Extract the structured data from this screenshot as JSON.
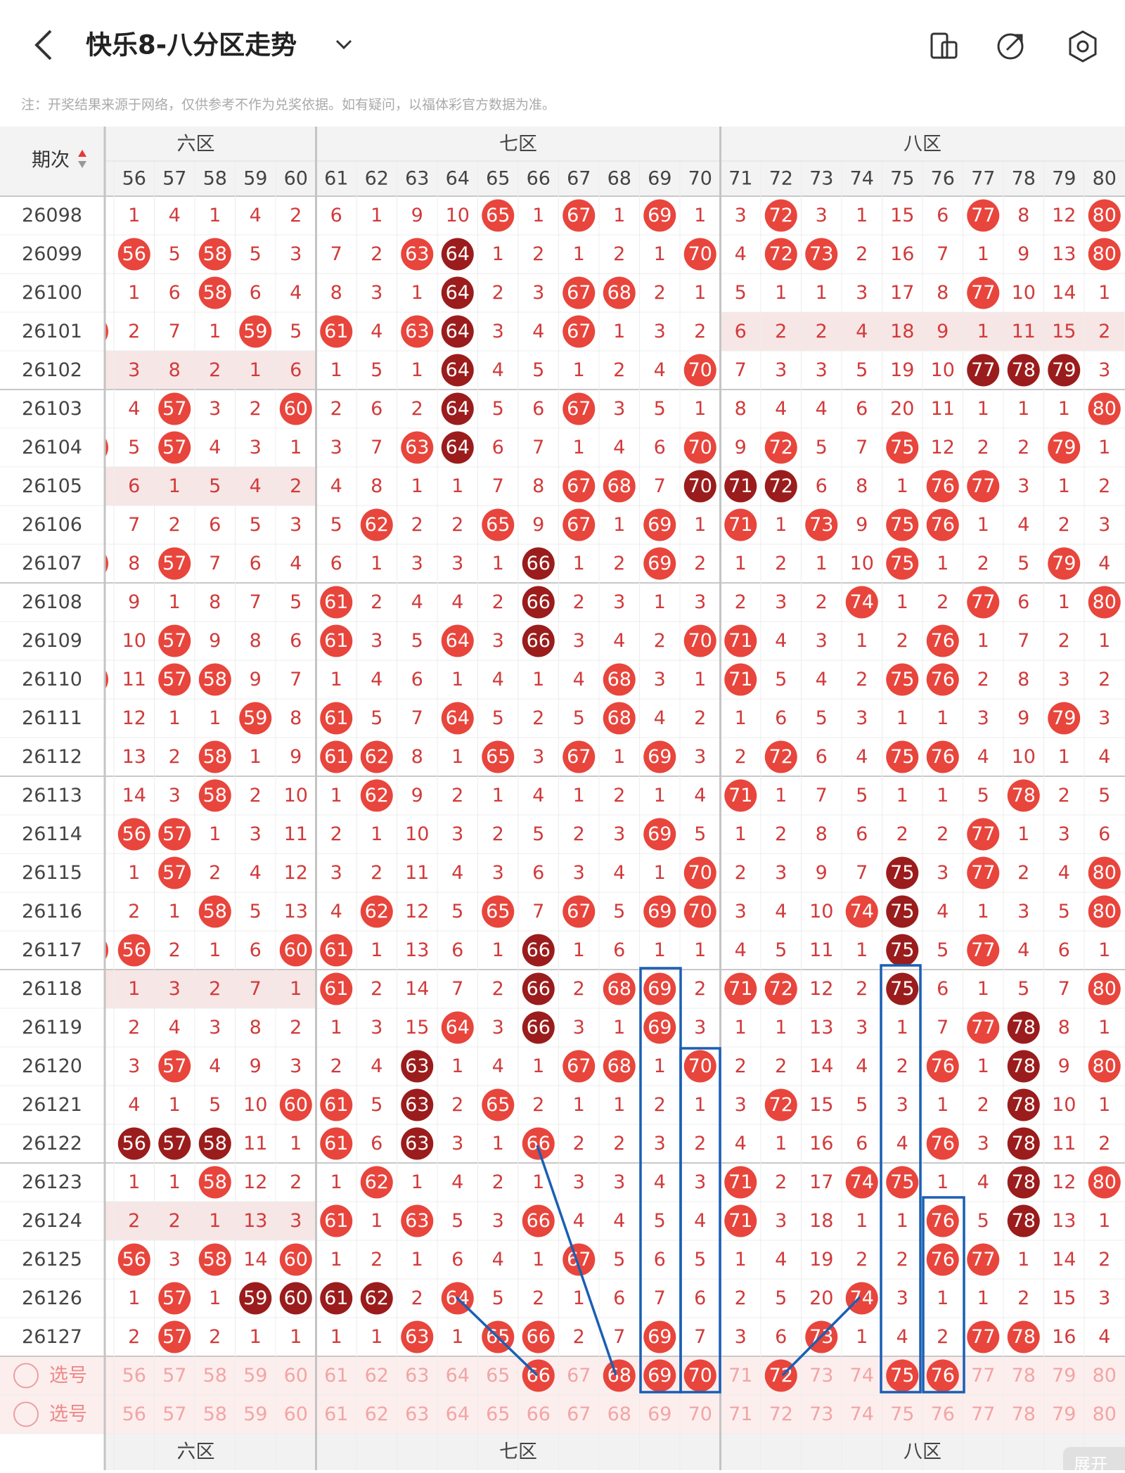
{
  "header": {
    "title": "快乐8-八分区走势",
    "note": "注：开奖结果来源于网络，仅供参考不作为兑奖依据。如有疑问，以福体彩官方数据为准。"
  },
  "table": {
    "period_header": "期次",
    "zones": [
      {
        "label": "六区",
        "columns": [
          56,
          57,
          58,
          59,
          60
        ]
      },
      {
        "label": "七区",
        "columns": [
          61,
          62,
          63,
          64,
          65,
          66,
          67,
          68,
          69,
          70
        ]
      },
      {
        "label": "八区",
        "columns": [
          71,
          72,
          73,
          74,
          75,
          76,
          77,
          78,
          79,
          80
        ]
      }
    ],
    "rows": [
      {
        "period": "26098",
        "cells": [
          1,
          4,
          1,
          4,
          2,
          6,
          1,
          9,
          10,
          65,
          1,
          67,
          1,
          69,
          1,
          3,
          72,
          3,
          1,
          15,
          6,
          77,
          8,
          12,
          80
        ]
      },
      {
        "period": "26099",
        "cells": [
          56,
          5,
          58,
          5,
          3,
          7,
          2,
          63,
          64,
          1,
          2,
          1,
          2,
          1,
          70,
          4,
          72,
          73,
          2,
          16,
          7,
          1,
          9,
          13,
          80
        ],
        "dark": [
          64
        ]
      },
      {
        "period": "26100",
        "cells": [
          1,
          6,
          58,
          6,
          4,
          8,
          3,
          1,
          64,
          2,
          3,
          67,
          68,
          2,
          1,
          5,
          1,
          1,
          3,
          17,
          8,
          77,
          10,
          14,
          1
        ],
        "dark": [
          64
        ]
      },
      {
        "period": "26101",
        "cells": [
          2,
          7,
          1,
          59,
          5,
          61,
          4,
          63,
          64,
          3,
          4,
          67,
          1,
          3,
          2,
          6,
          2,
          2,
          4,
          18,
          9,
          1,
          11,
          15,
          2
        ],
        "dark": [
          64
        ],
        "shade": "八区"
      },
      {
        "period": "26102",
        "cells": [
          3,
          8,
          2,
          1,
          6,
          1,
          5,
          1,
          64,
          4,
          5,
          1,
          2,
          4,
          70,
          7,
          3,
          3,
          5,
          19,
          10,
          77,
          78,
          79,
          3
        ],
        "dark": [
          64,
          77,
          78,
          79
        ],
        "shade": "六区"
      },
      {
        "period": "26103",
        "cells": [
          4,
          57,
          3,
          2,
          60,
          2,
          6,
          2,
          64,
          5,
          6,
          67,
          3,
          5,
          1,
          8,
          4,
          4,
          6,
          20,
          11,
          1,
          1,
          1,
          80
        ],
        "dark": [
          64
        ]
      },
      {
        "period": "26104",
        "cells": [
          5,
          57,
          4,
          3,
          1,
          3,
          7,
          63,
          64,
          6,
          7,
          1,
          4,
          6,
          70,
          9,
          72,
          5,
          7,
          75,
          12,
          2,
          2,
          79,
          1
        ],
        "dark": [
          64
        ]
      },
      {
        "period": "26105",
        "cells": [
          6,
          1,
          5,
          4,
          2,
          4,
          8,
          1,
          1,
          7,
          8,
          67,
          68,
          7,
          70,
          71,
          72,
          6,
          8,
          1,
          76,
          77,
          3,
          1,
          2
        ],
        "dark": [
          70,
          71,
          72
        ],
        "shade": "六区"
      },
      {
        "period": "26106",
        "cells": [
          7,
          2,
          6,
          5,
          3,
          5,
          62,
          2,
          2,
          65,
          9,
          67,
          1,
          69,
          1,
          71,
          1,
          73,
          9,
          75,
          76,
          1,
          4,
          2,
          3
        ]
      },
      {
        "period": "26107",
        "cells": [
          8,
          57,
          7,
          6,
          4,
          6,
          1,
          3,
          3,
          1,
          66,
          1,
          2,
          69,
          2,
          1,
          2,
          1,
          10,
          75,
          1,
          2,
          5,
          79,
          4
        ],
        "dark": [
          66
        ]
      },
      {
        "period": "26108",
        "cells": [
          9,
          1,
          8,
          7,
          5,
          61,
          2,
          4,
          4,
          2,
          66,
          2,
          3,
          1,
          3,
          2,
          3,
          2,
          74,
          1,
          2,
          77,
          6,
          1,
          80
        ],
        "dark": [
          66
        ]
      },
      {
        "period": "26109",
        "cells": [
          10,
          57,
          9,
          8,
          6,
          61,
          3,
          5,
          64,
          3,
          66,
          3,
          4,
          2,
          70,
          71,
          4,
          3,
          1,
          2,
          76,
          1,
          7,
          2,
          1
        ],
        "dark": [
          66
        ]
      },
      {
        "period": "26110",
        "cells": [
          11,
          57,
          58,
          9,
          7,
          1,
          4,
          6,
          1,
          4,
          1,
          4,
          68,
          3,
          1,
          71,
          5,
          4,
          2,
          75,
          76,
          2,
          8,
          3,
          2
        ]
      },
      {
        "period": "26111",
        "cells": [
          12,
          1,
          1,
          59,
          8,
          61,
          5,
          7,
          64,
          5,
          2,
          5,
          68,
          4,
          2,
          1,
          6,
          5,
          3,
          1,
          1,
          3,
          9,
          79,
          3
        ]
      },
      {
        "period": "26112",
        "cells": [
          13,
          2,
          58,
          1,
          9,
          61,
          62,
          8,
          1,
          65,
          3,
          67,
          1,
          69,
          3,
          2,
          72,
          6,
          4,
          75,
          76,
          4,
          10,
          1,
          4
        ]
      },
      {
        "period": "26113",
        "cells": [
          14,
          3,
          58,
          2,
          10,
          1,
          62,
          9,
          2,
          1,
          4,
          1,
          2,
          1,
          4,
          71,
          1,
          7,
          5,
          1,
          1,
          5,
          78,
          2,
          5
        ]
      },
      {
        "period": "26114",
        "cells": [
          56,
          57,
          1,
          3,
          11,
          2,
          1,
          10,
          3,
          2,
          5,
          2,
          3,
          69,
          5,
          1,
          2,
          8,
          6,
          2,
          2,
          77,
          1,
          3,
          6
        ]
      },
      {
        "period": "26115",
        "cells": [
          1,
          57,
          2,
          4,
          12,
          3,
          2,
          11,
          4,
          3,
          6,
          3,
          4,
          1,
          70,
          2,
          3,
          9,
          7,
          75,
          3,
          77,
          2,
          4,
          80
        ],
        "dark": [
          75
        ]
      },
      {
        "period": "26116",
        "cells": [
          2,
          1,
          58,
          5,
          13,
          4,
          62,
          12,
          5,
          65,
          7,
          67,
          5,
          69,
          70,
          3,
          4,
          10,
          74,
          75,
          4,
          1,
          3,
          5,
          80
        ],
        "dark": [
          75
        ]
      },
      {
        "period": "26117",
        "cells": [
          56,
          2,
          1,
          6,
          60,
          61,
          1,
          13,
          6,
          1,
          66,
          1,
          6,
          1,
          1,
          4,
          5,
          11,
          1,
          75,
          5,
          77,
          4,
          6,
          1
        ],
        "dark": [
          66,
          75
        ]
      },
      {
        "period": "26118",
        "cells": [
          1,
          3,
          2,
          7,
          1,
          61,
          2,
          14,
          7,
          2,
          66,
          2,
          68,
          69,
          2,
          71,
          72,
          12,
          2,
          75,
          6,
          1,
          5,
          7,
          80
        ],
        "dark": [
          66,
          75
        ],
        "shade": "六区"
      },
      {
        "period": "26119",
        "cells": [
          2,
          4,
          3,
          8,
          2,
          1,
          3,
          15,
          64,
          3,
          66,
          3,
          1,
          69,
          3,
          1,
          1,
          13,
          3,
          1,
          7,
          77,
          78,
          8,
          1
        ],
        "dark": [
          66,
          78
        ]
      },
      {
        "period": "26120",
        "cells": [
          3,
          57,
          4,
          9,
          3,
          2,
          4,
          63,
          1,
          4,
          1,
          67,
          68,
          1,
          70,
          2,
          2,
          14,
          4,
          2,
          76,
          1,
          78,
          9,
          80
        ],
        "dark": [
          63,
          78
        ]
      },
      {
        "period": "26121",
        "cells": [
          4,
          1,
          5,
          10,
          60,
          61,
          5,
          63,
          2,
          65,
          2,
          1,
          1,
          2,
          1,
          3,
          72,
          15,
          5,
          3,
          1,
          2,
          78,
          10,
          1
        ],
        "dark": [
          63,
          78
        ]
      },
      {
        "period": "26122",
        "cells": [
          56,
          57,
          58,
          11,
          1,
          61,
          6,
          63,
          3,
          1,
          66,
          2,
          2,
          3,
          2,
          4,
          1,
          16,
          6,
          4,
          76,
          3,
          78,
          11,
          2
        ],
        "dark": [
          56,
          57,
          58,
          63,
          78
        ]
      },
      {
        "period": "26123",
        "cells": [
          1,
          1,
          58,
          12,
          2,
          1,
          62,
          1,
          4,
          2,
          1,
          3,
          3,
          4,
          3,
          71,
          2,
          17,
          74,
          75,
          1,
          4,
          78,
          12,
          80
        ],
        "dark": [
          78
        ]
      },
      {
        "period": "26124",
        "cells": [
          2,
          2,
          1,
          13,
          3,
          61,
          1,
          63,
          5,
          3,
          66,
          4,
          4,
          5,
          4,
          71,
          3,
          18,
          1,
          1,
          76,
          5,
          78,
          13,
          1
        ],
        "dark": [
          78
        ],
        "shade": "六区"
      },
      {
        "period": "26125",
        "cells": [
          56,
          3,
          58,
          14,
          60,
          1,
          2,
          1,
          6,
          4,
          1,
          67,
          5,
          6,
          5,
          1,
          4,
          19,
          2,
          2,
          76,
          77,
          1,
          14,
          2
        ]
      },
      {
        "period": "26126",
        "cells": [
          1,
          57,
          1,
          59,
          60,
          61,
          62,
          2,
          64,
          5,
          2,
          1,
          6,
          7,
          6,
          2,
          5,
          20,
          74,
          3,
          1,
          1,
          2,
          15,
          3
        ],
        "dark": [
          59,
          60,
          61,
          62
        ]
      },
      {
        "period": "26127",
        "cells": [
          2,
          57,
          2,
          1,
          1,
          1,
          1,
          63,
          1,
          65,
          66,
          2,
          7,
          69,
          7,
          3,
          6,
          73,
          1,
          4,
          2,
          77,
          78,
          16,
          4
        ]
      }
    ],
    "picker_rows": [
      {
        "label": "选号",
        "selected": [
          66,
          68,
          69,
          70,
          72,
          75,
          76
        ]
      },
      {
        "label": "选号"
      }
    ],
    "expand_button": "展开"
  }
}
